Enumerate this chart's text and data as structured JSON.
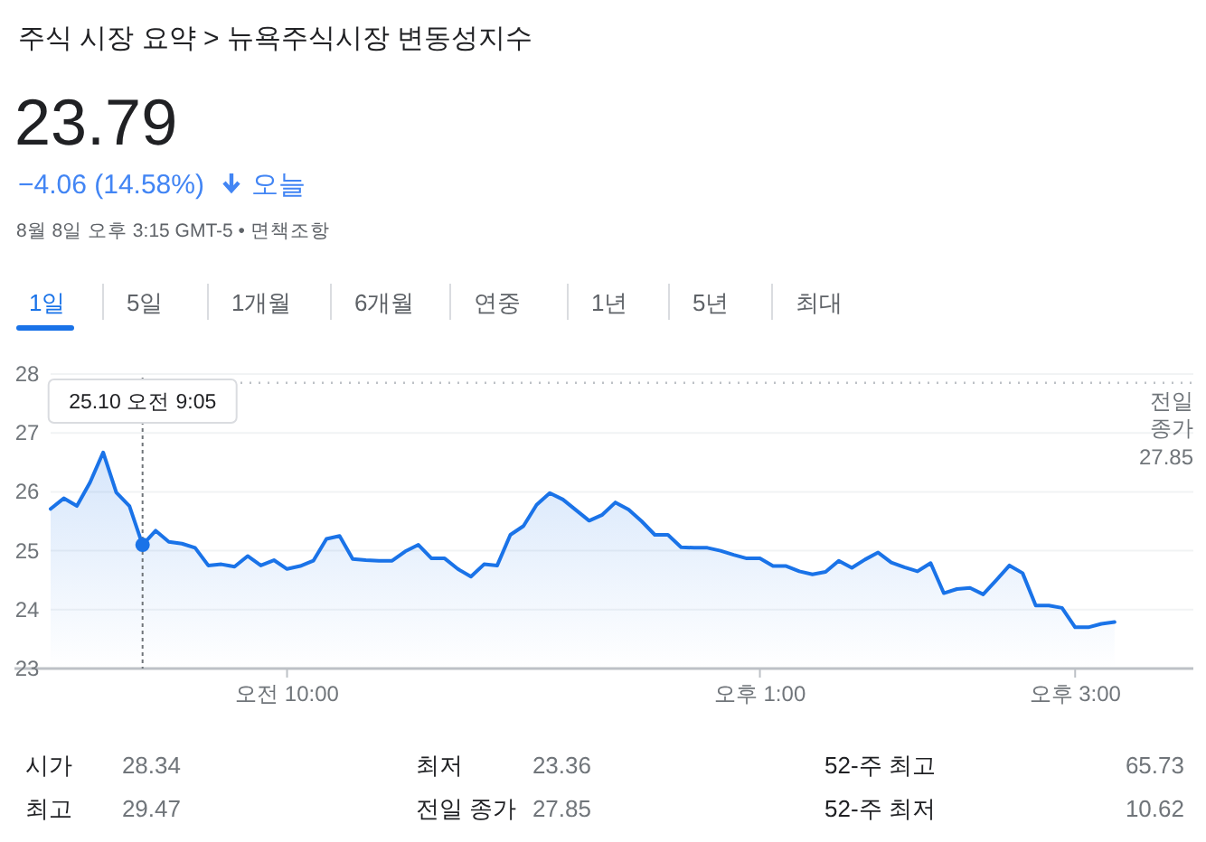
{
  "chart_data": {
    "type": "area",
    "title": "주식 시장 요약 > 뉴욕주식시장 변동성지수",
    "subtitle": "23.79",
    "annotations": [
      "−4.06 (14.58%)",
      "오늘",
      "8월 8일 오후 3:15 GMT-5 • 면책조항",
      "1일",
      "5일",
      "1개월",
      "6개월",
      "연중",
      "1년",
      "5년",
      "최대",
      "시가",
      "28.34",
      "최저",
      "23.36",
      "52-주 최고",
      "65.73",
      "최고",
      "29.47",
      "전일 종가",
      "27.85",
      "52-주 최저",
      "10.62",
      "25.10 오전 9:05"
    ],
    "categories": [
      null,
      null,
      null,
      null,
      null,
      null,
      null,
      null,
      null,
      null,
      null,
      null,
      null,
      null,
      null,
      null,
      null,
      null,
      "오전 10:00",
      null,
      null,
      null,
      null,
      null,
      null,
      null,
      null,
      null,
      null,
      null,
      null,
      null,
      null,
      null,
      null,
      null,
      null,
      null,
      null,
      null,
      null,
      null,
      null,
      null,
      null,
      null,
      null,
      null,
      null,
      null,
      null,
      null,
      null,
      null,
      "오후 1:00",
      null,
      null,
      null,
      null,
      null,
      null,
      null,
      null,
      null,
      null,
      null,
      null,
      null,
      null,
      null,
      null,
      null,
      null,
      null,
      null,
      null,
      null,
      null,
      "오후 3:00",
      null,
      null,
      null,
      null,
      null,
      null,
      null,
      null,
      null
    ],
    "series": [
      {
        "color": "#1a73e8",
        "values": [
          25.71,
          25.89,
          25.76,
          26.16,
          26.67,
          25.99,
          25.76,
          25.1,
          25.34,
          25.15,
          25.12,
          25.05,
          24.75,
          24.77,
          24.73,
          24.91,
          24.75,
          24.84,
          24.69,
          24.74,
          24.83,
          25.2,
          25.25,
          24.86,
          24.84,
          24.83,
          24.83,
          24.99,
          25.1,
          24.87,
          24.87,
          24.69,
          24.56,
          24.77,
          24.75,
          25.27,
          25.42,
          25.78,
          25.98,
          25.87,
          25.69,
          25.51,
          25.61,
          25.82,
          25.7,
          25.5,
          25.27,
          25.27,
          25.06,
          25.05,
          25.05,
          25,
          24.93,
          24.87,
          24.87,
          24.74,
          24.74,
          24.65,
          24.6,
          24.64,
          24.83,
          24.71,
          24.85,
          24.97,
          24.8,
          24.72,
          24.65,
          24.79,
          24.28,
          24.35,
          24.37,
          24.26,
          24.5,
          24.75,
          24.62,
          24.07,
          24.07,
          24.03,
          23.7,
          23.7,
          23.76,
          23.79,
          null,
          null,
          null,
          null,
          null,
          null
        ]
      }
    ],
    "ylim": [
      23,
      28
    ],
    "yticks": [
      23,
      24,
      25,
      26,
      27,
      28
    ],
    "grid": "y",
    "ref_lines": [
      {
        "axis": "y",
        "value": 27.85,
        "label": "전일 종가",
        "line_style": "dotted",
        "color": "#bdc1c6"
      }
    ]
  }
}
